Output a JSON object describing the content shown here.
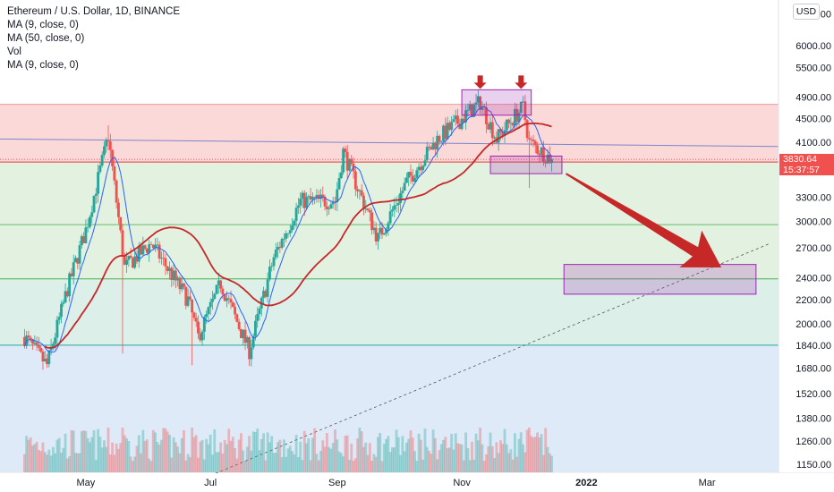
{
  "legend": {
    "title": "Ethereum / U.S. Dollar, 1D, BINANCE",
    "line1": "MA (9, close, 0)",
    "line2": "MA (50, close, 0)",
    "line3": "Vol",
    "line4": "MA (9, close, 0)"
  },
  "currency_button": "USD",
  "last_price": "3830.64",
  "countdown": "15:37:57",
  "colors": {
    "up": "#26a69a",
    "down": "#ef5350",
    "ma_fast": "#2962ff",
    "ma_slow": "#c62828",
    "arrow": "#c62828",
    "box_purple": "#9c27b0",
    "zone_red": "#fbd9d9",
    "zone_green": "#e3f1e1",
    "zone_teal": "#dcefe9",
    "zone_blue": "#dfeaf8"
  },
  "chart_data": {
    "type": "candlestick",
    "symbol": "Ethereum / U.S. Dollar",
    "interval": "1D",
    "exchange": "BINANCE",
    "y_axis_scale": "log",
    "y_tick_labels": [
      "6800.00",
      "6000.00",
      "5500.00",
      "4900.00",
      "4500.00",
      "4100.00",
      "3300.00",
      "3000.00",
      "2700.00",
      "2400.00",
      "2200.00",
      "2000.00",
      "1840.00",
      "1680.00",
      "1520.00",
      "1380.00",
      "1260.00",
      "1150.00"
    ],
    "x_tick_labels": [
      "May",
      "Jul",
      "Sep",
      "Nov",
      "2022",
      "Mar"
    ],
    "ylim": [
      1100,
      7000
    ],
    "price_swings": [
      {
        "date": "2021-04-01",
        "price": 1900
      },
      {
        "date": "2021-04-12",
        "price": 1700
      },
      {
        "date": "2021-04-22",
        "price": 2300
      },
      {
        "date": "2021-05-01",
        "price": 2900
      },
      {
        "date": "2021-05-12",
        "price": 4200
      },
      {
        "date": "2021-05-20",
        "price": 2500
      },
      {
        "date": "2021-06-02",
        "price": 2750
      },
      {
        "date": "2021-06-20",
        "price": 2200
      },
      {
        "date": "2021-06-25",
        "price": 1900
      },
      {
        "date": "2021-07-06",
        "price": 2350
      },
      {
        "date": "2021-07-20",
        "price": 1800
      },
      {
        "date": "2021-08-01",
        "price": 2600
      },
      {
        "date": "2021-08-14",
        "price": 3250
      },
      {
        "date": "2021-08-31",
        "price": 3250
      },
      {
        "date": "2021-09-04",
        "price": 3950
      },
      {
        "date": "2021-09-21",
        "price": 2800
      },
      {
        "date": "2021-10-05",
        "price": 3500
      },
      {
        "date": "2021-10-20",
        "price": 4150
      },
      {
        "date": "2021-11-01",
        "price": 4500
      },
      {
        "date": "2021-11-10",
        "price": 4800
      },
      {
        "date": "2021-11-18",
        "price": 4150
      },
      {
        "date": "2021-11-26",
        "price": 4500
      },
      {
        "date": "2021-12-01",
        "price": 4700
      },
      {
        "date": "2021-12-04",
        "price": 4100
      },
      {
        "date": "2021-12-10",
        "price": 3950
      },
      {
        "date": "2021-12-15",
        "price": 3830.64
      }
    ],
    "horizontal_lines": [
      3830.64,
      2960,
      2390,
      1840
    ],
    "zones": [
      {
        "from": 3790,
        "to": 4760,
        "color": "red"
      },
      {
        "from": 2960,
        "to": 3790,
        "color": "green"
      },
      {
        "from": 2390,
        "to": 2960,
        "color": "green"
      },
      {
        "from": 1840,
        "to": 2390,
        "color": "teal"
      },
      {
        "from": 1100,
        "to": 1840,
        "color": "blue"
      }
    ],
    "annotations": {
      "top_box": {
        "date_from": "2021-11-01",
        "date_to": "2021-12-05",
        "price_from": 4560,
        "price_to": 5040
      },
      "neckline_box": {
        "date_from": "2021-11-15",
        "date_to": "2021-12-20",
        "price_from": 3620,
        "price_to": 3880
      },
      "target_box": {
        "date_from": "2021-12-21",
        "date_to": "2022-03-25",
        "price_from": 2250,
        "price_to": 2530
      },
      "down_arrows": [
        "2021-11-10",
        "2021-11-30"
      ],
      "projection_arrow": {
        "from_date": "2021-12-22",
        "from_price": 3620,
        "to_date": "2022-03-08",
        "to_price": 2500
      },
      "trendline": {
        "from_date": "2021-07-01",
        "from_price": 1100,
        "to_date": "2022-04-01",
        "to_price": 2750
      }
    }
  }
}
